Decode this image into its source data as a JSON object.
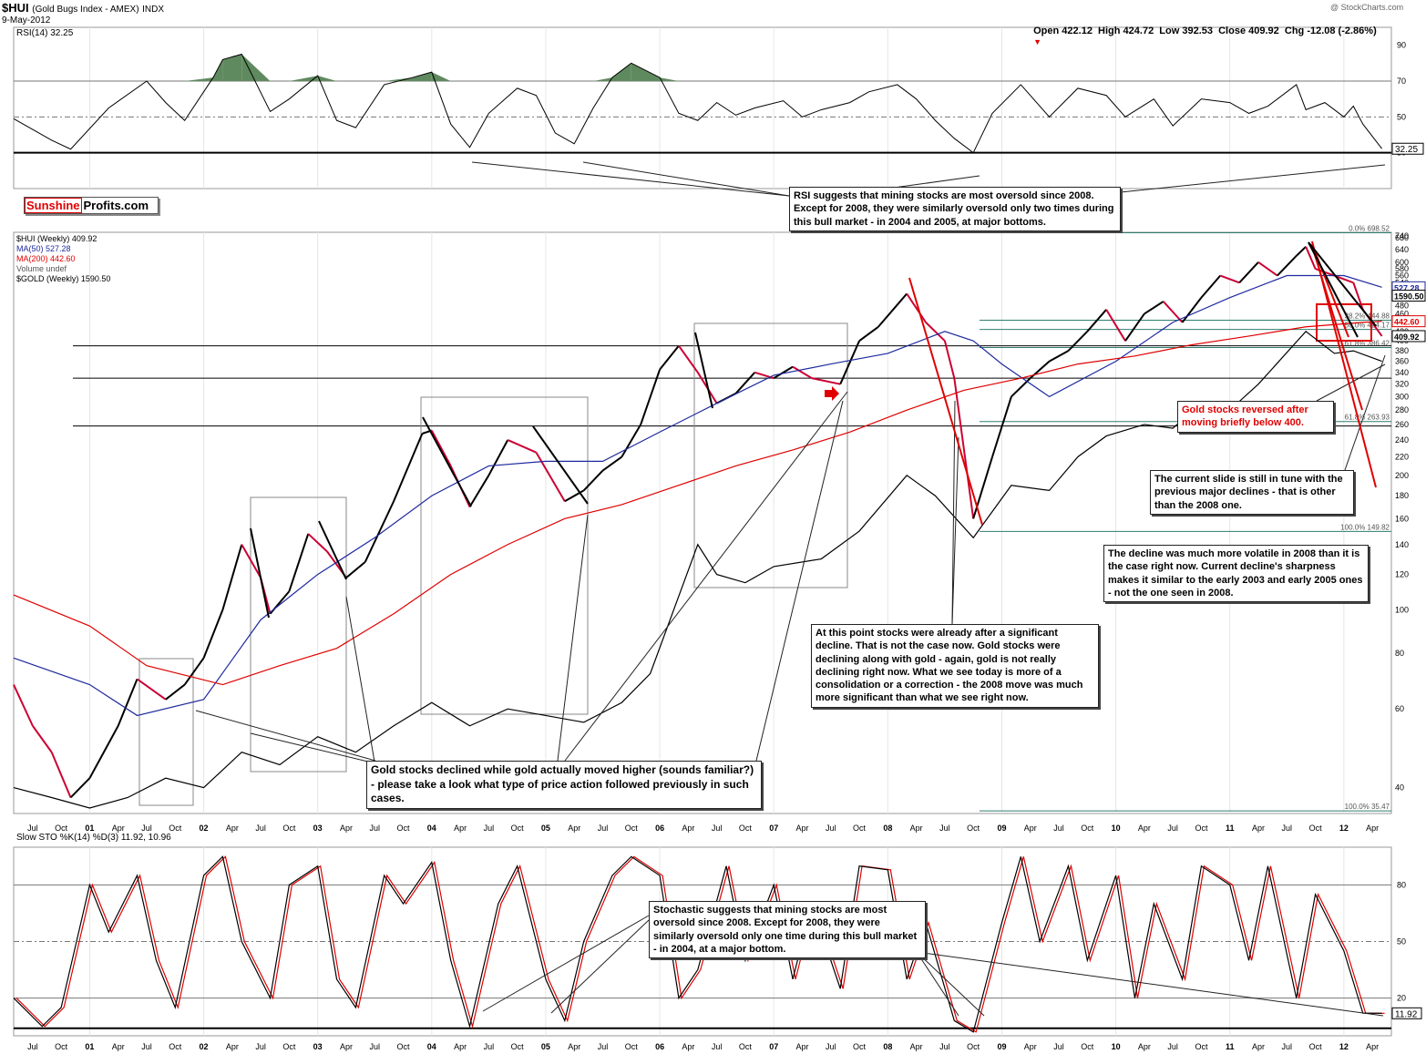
{
  "header": {
    "symbol": "$HUI",
    "name": "(Gold Bugs Index - AMEX)",
    "exchange": "INDX",
    "date": "9-May-2012",
    "watermark": "@ StockCharts.com",
    "quote": "Open 422.12  High 424.72  Low 392.53  Close 409.92  Chg -12.08 (-2.86%)",
    "chg_marker": "▼"
  },
  "brand": {
    "part1": "Sunshine",
    "part2": "Profits.com"
  },
  "legend": {
    "rsi": "RSI(14) 32.25",
    "hui": "$HUI (Weekly) 409.92",
    "ma50": "MA(50) 527.28",
    "ma200": "MA(200) 442.60",
    "volume": "Volume undef",
    "gold": "$GOLD (Weekly) 1590.50",
    "sto": "Slow STO %K(14) %D(3) 11.92, 10.96"
  },
  "colors": {
    "price_up": "#000000",
    "price_down": "#cc0033",
    "ma50": "#1f2a9e",
    "ma200": "#e00000",
    "rsi_high_fill": "#5f8a5f",
    "rsi_low_fill": "#8b5a5a",
    "annotation_red": "#e00000"
  },
  "chart_data": [
    {
      "type": "line",
      "title": "RSI(14)",
      "ylim": [
        10,
        100
      ],
      "yticks": [
        90,
        70,
        50,
        30
      ],
      "reference_levels": [
        70,
        50,
        30
      ],
      "last_value": "32.25",
      "x": [
        "2000-05",
        "2000-09",
        "2000-11",
        "2001-03",
        "2001-07",
        "2001-09",
        "2001-11",
        "2002-02",
        "2002-03",
        "2002-05",
        "2002-08",
        "2002-10",
        "2003-01",
        "2003-03",
        "2003-05",
        "2003-08",
        "2003-11",
        "2004-01",
        "2004-03",
        "2004-05",
        "2004-07",
        "2004-10",
        "2004-12",
        "2005-02",
        "2005-04",
        "2005-06",
        "2005-08",
        "2005-10",
        "2006-01",
        "2006-03",
        "2006-05",
        "2006-07",
        "2006-09",
        "2006-11",
        "2007-02",
        "2007-04",
        "2007-06",
        "2007-09",
        "2007-11",
        "2008-02",
        "2008-04",
        "2008-06",
        "2008-08",
        "2008-10",
        "2008-12",
        "2009-03",
        "2009-06",
        "2009-09",
        "2009-12",
        "2010-02",
        "2010-05",
        "2010-07",
        "2010-10",
        "2011-01",
        "2011-03",
        "2011-05",
        "2011-08",
        "2011-09",
        "2011-11",
        "2012-01",
        "2012-02",
        "2012-03",
        "2012-05"
      ],
      "values": [
        49,
        37,
        32,
        55,
        70,
        58,
        48,
        72,
        82,
        85,
        53,
        60,
        73,
        48,
        44,
        68,
        72,
        75,
        46,
        33,
        52,
        66,
        62,
        41,
        35,
        55,
        72,
        80,
        72,
        52,
        48,
        58,
        51,
        55,
        59,
        50,
        54,
        58,
        64,
        68,
        60,
        48,
        38,
        30,
        52,
        68,
        50,
        66,
        62,
        50,
        60,
        45,
        60,
        58,
        52,
        56,
        68,
        54,
        58,
        50,
        56,
        46,
        32.25
      ]
    },
    {
      "type": "line",
      "title": "$HUI (Weekly)",
      "y_scale": "log",
      "ylim": [
        35,
        700
      ],
      "yticks": [
        40,
        60,
        80,
        100,
        120,
        140,
        160,
        180,
        200,
        220,
        240,
        260,
        280,
        300,
        320,
        340,
        360,
        380,
        400,
        420,
        440,
        460,
        480,
        500,
        520,
        540,
        560,
        580,
        600,
        640,
        680,
        740
      ],
      "x_tick_labels": [
        "Jul",
        "Oct",
        "01",
        "Apr",
        "Jul",
        "Oct",
        "02",
        "Apr",
        "Jul",
        "Oct",
        "03",
        "Apr",
        "Jul",
        "Oct",
        "04",
        "Apr",
        "Jul",
        "Oct",
        "05",
        "Apr",
        "Jul",
        "Oct",
        "06",
        "Apr",
        "Jul",
        "Oct",
        "07",
        "Apr",
        "Jul",
        "Oct",
        "08",
        "Apr",
        "Jul",
        "Oct",
        "09",
        "Apr",
        "Jul",
        "Oct",
        "10",
        "Apr",
        "Jul",
        "Oct",
        "11",
        "Apr",
        "Jul",
        "Oct",
        "12",
        "Apr"
      ],
      "series": [
        {
          "name": "$HUI (Weekly)",
          "x": [
            "2000-05",
            "2000-07",
            "2000-09",
            "2000-11",
            "2001-01",
            "2001-04",
            "2001-06",
            "2001-09",
            "2001-11",
            "2002-01",
            "2002-03",
            "2002-05",
            "2002-07",
            "2002-08",
            "2002-10",
            "2002-12",
            "2003-02",
            "2003-04",
            "2003-06",
            "2003-09",
            "2003-12",
            "2004-01",
            "2004-03",
            "2004-05",
            "2004-07",
            "2004-09",
            "2004-12",
            "2005-03",
            "2005-05",
            "2005-07",
            "2005-09",
            "2005-11",
            "2006-01",
            "2006-03",
            "2006-05",
            "2006-07",
            "2006-09",
            "2006-11",
            "2007-01",
            "2007-03",
            "2007-05",
            "2007-08",
            "2007-10",
            "2007-12",
            "2008-03",
            "2008-05",
            "2008-07",
            "2008-08",
            "2008-10",
            "2008-12",
            "2009-02",
            "2009-04",
            "2009-06",
            "2009-08",
            "2009-10",
            "2009-12",
            "2010-02",
            "2010-04",
            "2010-06",
            "2010-08",
            "2010-10",
            "2010-12",
            "2011-02",
            "2011-04",
            "2011-06",
            "2011-08",
            "2011-09",
            "2011-10",
            "2011-12",
            "2012-02",
            "2012-03",
            "2012-05"
          ],
          "values": [
            68,
            55,
            48,
            38,
            42,
            55,
            70,
            63,
            68,
            78,
            100,
            140,
            118,
            98,
            110,
            148,
            135,
            118,
            128,
            175,
            248,
            252,
            210,
            170,
            200,
            240,
            225,
            175,
            185,
            205,
            220,
            260,
            345,
            390,
            340,
            290,
            305,
            340,
            330,
            350,
            330,
            320,
            400,
            430,
            510,
            440,
            400,
            330,
            160,
            220,
            300,
            330,
            360,
            380,
            420,
            470,
            400,
            460,
            490,
            440,
            500,
            560,
            540,
            600,
            560,
            620,
            650,
            580,
            560,
            540,
            470,
            409.92
          ]
        },
        {
          "name": "MA(50)",
          "x": [
            "2000-05",
            "2001-01",
            "2001-06",
            "2002-01",
            "2002-07",
            "2003-01",
            "2003-07",
            "2004-01",
            "2004-07",
            "2005-01",
            "2005-07",
            "2006-01",
            "2006-07",
            "2007-01",
            "2007-07",
            "2008-01",
            "2008-07",
            "2008-10",
            "2009-01",
            "2009-06",
            "2010-01",
            "2010-07",
            "2011-01",
            "2011-07",
            "2012-01",
            "2012-05"
          ],
          "values": [
            78,
            68,
            58,
            63,
            95,
            120,
            145,
            180,
            210,
            215,
            215,
            250,
            290,
            335,
            355,
            375,
            420,
            400,
            355,
            300,
            360,
            440,
            500,
            560,
            560,
            527.28
          ]
        },
        {
          "name": "MA(200)",
          "x": [
            "2000-05",
            "2001-01",
            "2001-07",
            "2002-03",
            "2002-09",
            "2003-03",
            "2003-09",
            "2004-03",
            "2004-09",
            "2005-03",
            "2005-09",
            "2006-03",
            "2006-09",
            "2007-03",
            "2007-09",
            "2008-03",
            "2008-09",
            "2009-03",
            "2009-09",
            "2010-03",
            "2010-09",
            "2011-03",
            "2011-09",
            "2012-03",
            "2012-05"
          ],
          "values": [
            108,
            92,
            75,
            68,
            75,
            82,
            98,
            120,
            140,
            160,
            172,
            190,
            210,
            228,
            250,
            280,
            310,
            330,
            355,
            370,
            392,
            410,
            430,
            440,
            442.6
          ]
        },
        {
          "name": "$GOLD (Weekly)",
          "x": [
            "2000-05",
            "2000-09",
            "2001-01",
            "2001-05",
            "2001-09",
            "2002-01",
            "2002-05",
            "2002-09",
            "2003-01",
            "2003-05",
            "2003-09",
            "2004-01",
            "2004-05",
            "2004-09",
            "2005-01",
            "2005-05",
            "2005-09",
            "2005-12",
            "2006-05",
            "2006-07",
            "2006-10",
            "2007-01",
            "2007-06",
            "2007-10",
            "2008-03",
            "2008-06",
            "2008-10",
            "2009-02",
            "2009-06",
            "2009-09",
            "2009-12",
            "2010-04",
            "2010-07",
            "2010-10",
            "2011-01",
            "2011-04",
            "2011-09",
            "2011-12",
            "2012-02",
            "2012-05"
          ],
          "values": [
            40,
            38,
            36,
            38,
            42,
            40,
            48,
            45,
            52,
            48,
            55,
            62,
            55,
            60,
            58,
            56,
            62,
            72,
            140,
            120,
            115,
            125,
            130,
            150,
            200,
            180,
            145,
            190,
            185,
            220,
            245,
            260,
            255,
            290,
            280,
            320,
            420,
            375,
            380,
            360
          ]
        }
      ],
      "horizontal_levels": [
        390,
        330,
        258
      ],
      "fibonacci": [
        {
          "label": "0.0% 698.52",
          "value": 698.52
        },
        {
          "label": "38.2% 444.88",
          "value": 444.88
        },
        {
          "label": "50.0% 424.17",
          "value": 424.17
        },
        {
          "label": "61.8% 386.42",
          "value": 386.42
        },
        {
          "label": "61.8% 263.93",
          "value": 263.93
        },
        {
          "label": "100.0% 149.82",
          "value": 149.82
        },
        {
          "label": "100.0% 35.47",
          "value": 35.47
        }
      ],
      "right_labels": {
        "ma50": "527.28",
        "gold": "1590.50",
        "ma200": "442.60",
        "close": "409.92"
      }
    },
    {
      "type": "line",
      "title": "Slow STO %K(14) %D(3)",
      "ylim": [
        0,
        100
      ],
      "yticks": [
        80,
        50,
        20
      ],
      "reference_levels": [
        80,
        50,
        20
      ],
      "last_value": "11.92",
      "x": [
        "2000-05",
        "2000-08",
        "2000-10",
        "2001-01",
        "2001-03",
        "2001-06",
        "2001-08",
        "2001-10",
        "2002-01",
        "2002-03",
        "2002-05",
        "2002-08",
        "2002-10",
        "2003-01",
        "2003-03",
        "2003-05",
        "2003-08",
        "2003-10",
        "2004-01",
        "2004-03",
        "2004-05",
        "2004-08",
        "2004-10",
        "2005-01",
        "2005-03",
        "2005-05",
        "2005-08",
        "2005-10",
        "2006-01",
        "2006-03",
        "2006-05",
        "2006-08",
        "2006-10",
        "2007-01",
        "2007-03",
        "2007-05",
        "2007-08",
        "2007-10",
        "2008-01",
        "2008-03",
        "2008-05",
        "2008-08",
        "2008-10",
        "2009-01",
        "2009-03",
        "2009-05",
        "2009-08",
        "2009-10",
        "2010-01",
        "2010-03",
        "2010-05",
        "2010-08",
        "2010-10",
        "2011-01",
        "2011-03",
        "2011-05",
        "2011-08",
        "2011-10",
        "2012-01",
        "2012-03",
        "2012-05"
      ],
      "values": [
        20,
        5,
        15,
        80,
        55,
        85,
        40,
        15,
        85,
        95,
        50,
        20,
        80,
        90,
        30,
        15,
        85,
        70,
        92,
        40,
        5,
        70,
        90,
        30,
        8,
        50,
        85,
        95,
        85,
        20,
        35,
        90,
        40,
        80,
        30,
        70,
        25,
        90,
        88,
        30,
        60,
        8,
        2,
        60,
        95,
        50,
        90,
        40,
        85,
        20,
        70,
        30,
        90,
        80,
        40,
        90,
        20,
        75,
        45,
        12,
        11.92
      ]
    }
  ],
  "annotations": {
    "rsi_note": "RSI suggests that mining stocks are most oversold since 2008. Except for 2008, they were similarly oversold only two times during this bull market - in 2004 and 2005, at major bottoms.",
    "gold_note": "Gold stocks declined while gold actually moved higher (sounds familiar?) - please take a look what type of price action followed previously in such cases.",
    "point2008_note": "At this point stocks were already after a significant decline. That is not the case now. Gold stocks were declining along with gold - again, gold is not really declining right now. What we see today is more of a consolidation or a correction - the 2008 move was much more significant than what we see right now.",
    "reversal_note": "Gold stocks reversed after moving briefly below 400.",
    "slide_note": "The current slide is still in tune with the previous major declines - that is other than the 2008 one.",
    "volatile_note": "The decline was much more volatile in 2008 than it is the case right now. Current decline's sharpness makes it similar to the early 2003 and early 2005 ones - not the one seen in 2008.",
    "sto_note": "Stochastic suggests that mining stocks are most oversold since 2008. Except for 2008, they were similarly oversold only one time during this bull market - in 2004, at a major bottom."
  }
}
